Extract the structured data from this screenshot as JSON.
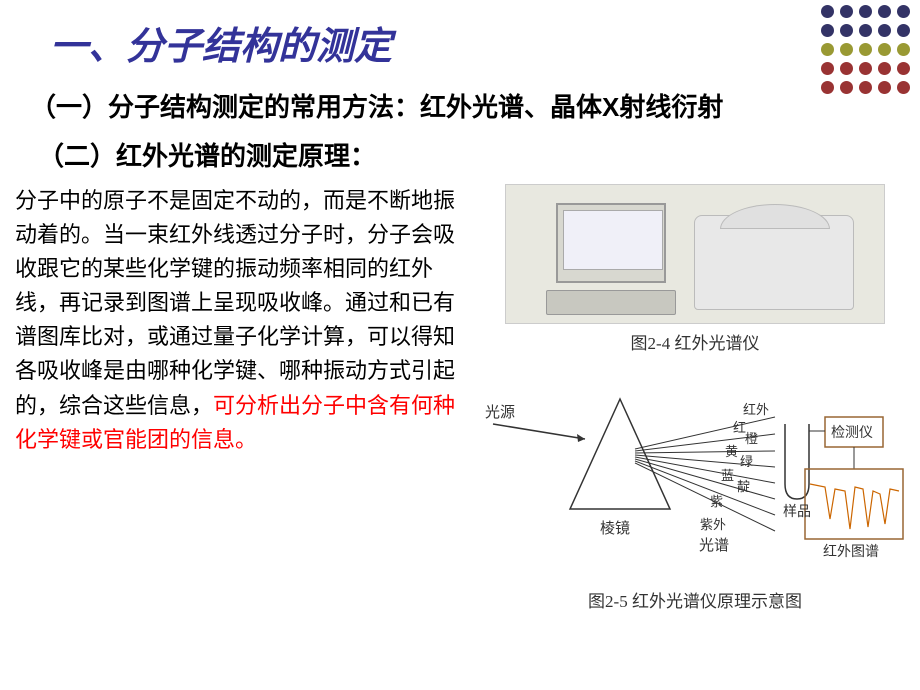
{
  "decoration": {
    "rows": 5,
    "cols": 5,
    "colors": {
      "navy": "#333366",
      "olive": "#999933",
      "burgundy": "#993333"
    },
    "pattern": [
      [
        "navy",
        "navy",
        "navy",
        "navy",
        "navy"
      ],
      [
        "navy",
        "navy",
        "navy",
        "navy",
        "navy"
      ],
      [
        "olive",
        "olive",
        "olive",
        "olive",
        "olive"
      ],
      [
        "burgundy",
        "burgundy",
        "burgundy",
        "burgundy",
        "burgundy"
      ],
      [
        "burgundy",
        "burgundy",
        "burgundy",
        "burgundy",
        "burgundy"
      ]
    ]
  },
  "title": "一、分子结构的测定",
  "section1": "（一）分子结构测定的常用方法：红外光谱、晶体X射线衍射",
  "section2": "（二）红外光谱的测定原理：",
  "body_black": "分子中的原子不是固定不动的，而是不断地振动着的。当一束红外线透过分子时，分子会吸收跟它的某些化学键的振动频率相同的红外线，再记录到图谱上呈现吸收峰。通过和已有谱图库比对，或通过量子化学计算，可以得知各吸收峰是由哪种化学键、哪种振动方式引起的，综合这些信息，",
  "body_red": "可分析出分子中含有何种化学键或官能团的信息。",
  "fig1_caption": "图2-4  红外光谱仪",
  "fig2_caption": "图2-5  红外光谱仪原理示意图",
  "diagram": {
    "labels": {
      "light_source": "光源",
      "prism": "棱镜",
      "spectrum": "光谱",
      "red": "红",
      "infrared": "红外",
      "orange": "橙",
      "yellow": "黄",
      "green": "绿",
      "blue": "蓝",
      "indigo": "靛",
      "purple": "紫",
      "ultraviolet": "紫外",
      "sample": "样品",
      "detector": "检测仪",
      "ir_spectrum": "红外图谱"
    },
    "colors": {
      "line": "#333333",
      "detector_border": "#996633",
      "spectrum_line": "#cc6600"
    }
  }
}
